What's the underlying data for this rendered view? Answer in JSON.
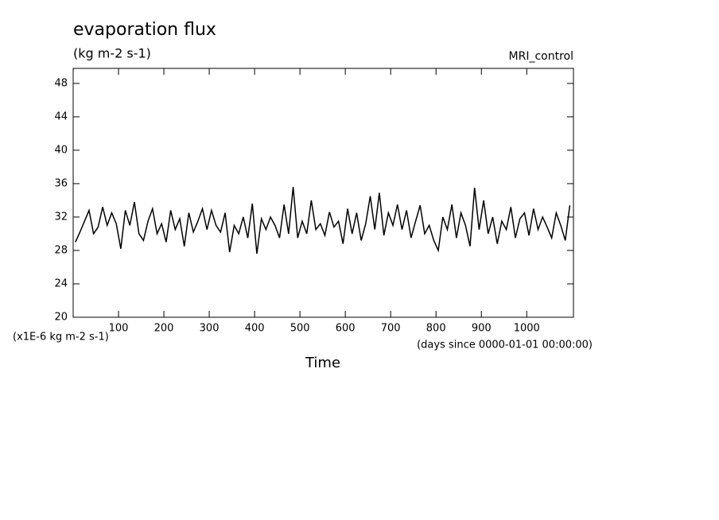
{
  "chart_data": {
    "type": "line",
    "title": "evaporation flux",
    "subtitle": "(kg m-2 s-1)",
    "dataset": "MRI_control",
    "y_units": "(x1E-6 kg m-2 s-1)",
    "x_units": "(days since 0000-01-01 00:00:00)",
    "x_label": "Time",
    "xlim": [
      0,
      1103
    ],
    "ylim": [
      20,
      49.8
    ],
    "xticks": [
      100,
      200,
      300,
      400,
      500,
      600,
      700,
      800,
      900,
      1000
    ],
    "yticks": [
      20,
      24,
      28,
      32,
      36,
      40,
      44,
      48
    ],
    "x": [
      5,
      15,
      25,
      35,
      45,
      55,
      65,
      75,
      85,
      95,
      105,
      115,
      125,
      135,
      145,
      155,
      165,
      175,
      185,
      195,
      205,
      215,
      225,
      235,
      245,
      255,
      265,
      275,
      285,
      295,
      305,
      315,
      325,
      335,
      345,
      355,
      365,
      375,
      385,
      395,
      405,
      415,
      425,
      435,
      445,
      455,
      465,
      475,
      485,
      495,
      505,
      515,
      525,
      535,
      545,
      555,
      565,
      575,
      585,
      595,
      605,
      615,
      625,
      635,
      645,
      655,
      665,
      675,
      685,
      695,
      705,
      715,
      725,
      735,
      745,
      755,
      765,
      775,
      785,
      795,
      805,
      815,
      825,
      835,
      845,
      855,
      865,
      875,
      885,
      895,
      905,
      915,
      925,
      935,
      945,
      955,
      965,
      975,
      985,
      995,
      1005,
      1015,
      1025,
      1035,
      1045,
      1055,
      1065,
      1075,
      1085,
      1095
    ],
    "series": [
      {
        "color": "#000000",
        "values": [
          29.0,
          30.2,
          31.5,
          32.8,
          30.0,
          30.8,
          33.2,
          31.0,
          32.5,
          31.2,
          28.2,
          32.8,
          31.0,
          33.8,
          30.0,
          29.2,
          31.5,
          33.0,
          30.0,
          31.2,
          29.0,
          32.8,
          30.5,
          31.8,
          28.5,
          32.5,
          30.2,
          31.5,
          33.0,
          30.5,
          32.8,
          31.0,
          30.2,
          32.5,
          27.8,
          31.0,
          30.0,
          32.0,
          29.5,
          33.6,
          27.6,
          31.8,
          30.5,
          32.0,
          31.0,
          29.5,
          33.5,
          30.0,
          35.6,
          29.5,
          31.5,
          30.0,
          34.0,
          30.5,
          31.2,
          29.8,
          32.6,
          30.8,
          31.5,
          28.8,
          33.0,
          30.0,
          32.5,
          29.2,
          31.2,
          34.5,
          30.5,
          34.9,
          29.8,
          32.5,
          31.0,
          33.5,
          30.5,
          32.8,
          29.5,
          31.5,
          33.4,
          30.0,
          31.0,
          29.2,
          28.0,
          32.0,
          30.5,
          33.5,
          29.5,
          32.5,
          31.0,
          28.5,
          35.5,
          30.5,
          34.0,
          30.0,
          32.0,
          28.8,
          31.5,
          30.5,
          33.2,
          29.5,
          31.8,
          32.5,
          29.8,
          33.0,
          30.5,
          32.0,
          30.8,
          29.5,
          32.5,
          31.0,
          29.2,
          33.4
        ]
      }
    ]
  }
}
